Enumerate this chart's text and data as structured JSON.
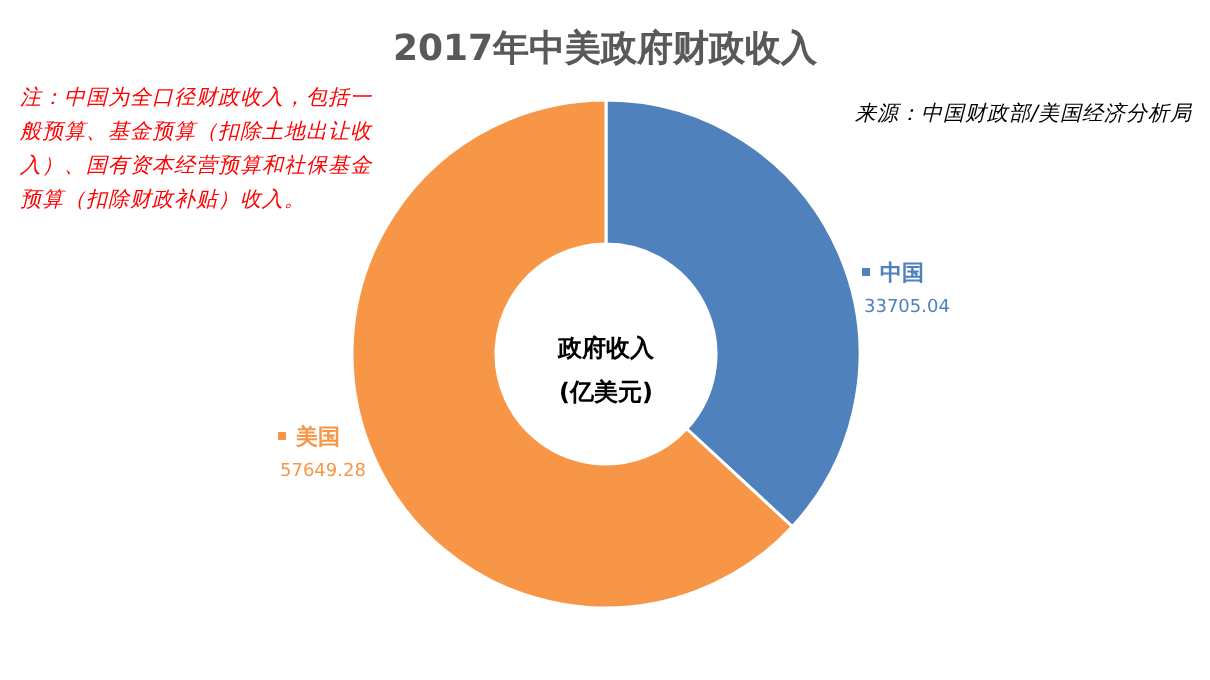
{
  "chart_data": {
    "type": "donut",
    "title": "2017年中美政府财政收入",
    "categories": [
      "中国",
      "美国"
    ],
    "values": [
      33705.04,
      57649.28
    ],
    "colors": [
      "#4f81bd",
      "#f79646"
    ],
    "data_labels": true,
    "legend": "right",
    "annotations": [
      "注：中国为全口径财政收入，包括一般预算、基金预算（扣除土地出让收入）、国有资本经营预算和社保基金预算（扣除财政补贴）收入。",
      "来源：中国财政部/美国经济分析局",
      "政府收入",
      "(亿美元)"
    ]
  }
}
